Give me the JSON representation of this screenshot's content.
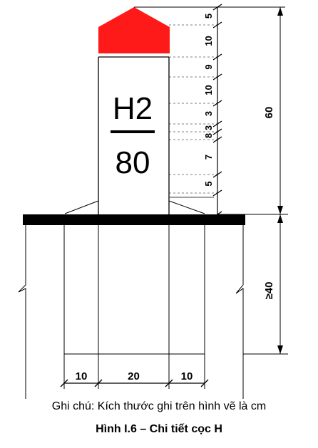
{
  "drawing": {
    "pile_code": "H2",
    "pile_number": "80",
    "cap_color": "#ff1a1a",
    "base_color": "#000000",
    "vertical_dims": [
      "5",
      "10",
      "9",
      "10",
      "3",
      "3",
      "8",
      "7",
      "5"
    ],
    "total_height": "60",
    "embed_depth": "≥40",
    "bottom_dims": [
      "10",
      "20",
      "10"
    ]
  },
  "note": "Ghi chú: Kích thước ghi trên hình vẽ là cm",
  "caption": "Hình I.6 – Chi tiết cọc H"
}
